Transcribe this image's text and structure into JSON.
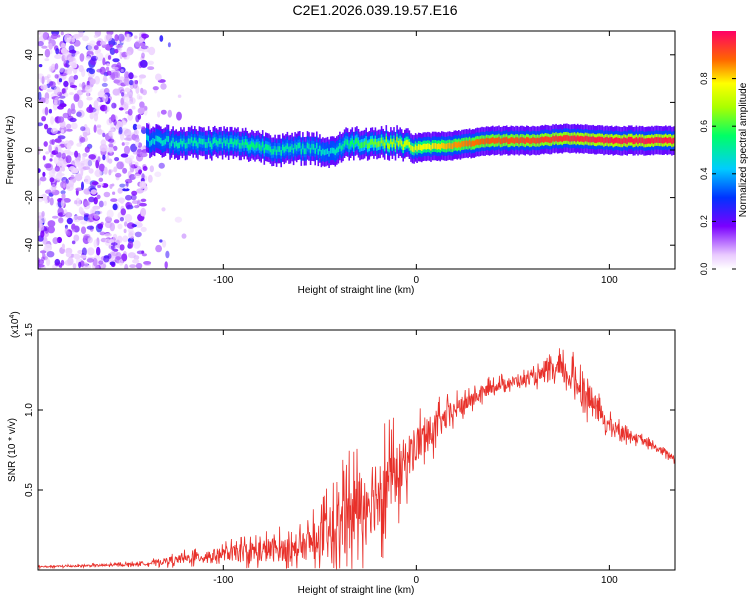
{
  "title": "C2E1.2026.039.19.57.E16",
  "chart_data": [
    {
      "type": "heatmap",
      "name": "spectrogram",
      "xlabel": "Height of straight line (km)",
      "ylabel": "Frequency (Hz)",
      "xlim": [
        -196,
        134
      ],
      "ylim": [
        -50,
        50
      ],
      "xticks": [
        -100,
        0,
        100
      ],
      "xtick_labels": [
        "-100",
        "0",
        "100"
      ],
      "yticks": [
        -40,
        -20,
        0,
        20,
        40
      ],
      "ytick_labels": [
        "-40",
        "-20",
        "0",
        "20",
        "40"
      ],
      "colorbar": {
        "label": "Normalized spectral amplitude",
        "range": [
          0,
          1
        ],
        "ticks": [
          0.0,
          0.2,
          0.4,
          0.6,
          0.8
        ],
        "tick_labels": [
          "0.0",
          "0.2",
          "0.4",
          "0.6",
          "0.8"
        ]
      },
      "noise_region_x": [
        -196,
        -140
      ],
      "ridge": [
        {
          "x": -140,
          "y": 4,
          "a": 0.45
        },
        {
          "x": -120,
          "y": 3,
          "a": 0.5
        },
        {
          "x": -100,
          "y": 3,
          "a": 0.5
        },
        {
          "x": -85,
          "y": 2,
          "a": 0.55
        },
        {
          "x": -70,
          "y": 0,
          "a": 0.5
        },
        {
          "x": -55,
          "y": 1,
          "a": 0.5
        },
        {
          "x": -45,
          "y": -1,
          "a": 0.45
        },
        {
          "x": -35,
          "y": 3,
          "a": 0.55
        },
        {
          "x": -20,
          "y": 3,
          "a": 0.65
        },
        {
          "x": -10,
          "y": 3,
          "a": 0.7
        },
        {
          "x": 0,
          "y": 1,
          "a": 0.75
        },
        {
          "x": 20,
          "y": 2,
          "a": 0.85
        },
        {
          "x": 40,
          "y": 4,
          "a": 0.9
        },
        {
          "x": 60,
          "y": 4,
          "a": 0.92
        },
        {
          "x": 80,
          "y": 5,
          "a": 0.95
        },
        {
          "x": 100,
          "y": 4,
          "a": 0.97
        },
        {
          "x": 134,
          "y": 4,
          "a": 0.97
        }
      ]
    },
    {
      "type": "line",
      "name": "snr",
      "xlabel": "Height of straight line (km)",
      "ylabel": "SNR (10 * v/v)",
      "scale_label": "(x10",
      "scale_exp": "4",
      "xlim": [
        -196,
        134
      ],
      "ylim": [
        0,
        1.5
      ],
      "xticks": [
        -100,
        0,
        100
      ],
      "xtick_labels": [
        "-100",
        "0",
        "100"
      ],
      "yticks": [
        0.5,
        1.0,
        1.5
      ],
      "ytick_labels": [
        "0.5",
        "1.0",
        "1.5"
      ],
      "color": "#e8302a",
      "envelope": [
        {
          "x": -196,
          "base": 0.02,
          "amp": 0.01
        },
        {
          "x": -160,
          "base": 0.03,
          "amp": 0.015
        },
        {
          "x": -140,
          "base": 0.04,
          "amp": 0.02
        },
        {
          "x": -120,
          "base": 0.07,
          "amp": 0.06
        },
        {
          "x": -100,
          "base": 0.1,
          "amp": 0.08
        },
        {
          "x": -80,
          "base": 0.12,
          "amp": 0.15
        },
        {
          "x": -60,
          "base": 0.14,
          "amp": 0.15
        },
        {
          "x": -40,
          "base": 0.25,
          "amp": 0.4
        },
        {
          "x": -30,
          "base": 0.4,
          "amp": 0.45
        },
        {
          "x": -20,
          "base": 0.5,
          "amp": 0.5
        },
        {
          "x": -10,
          "base": 0.6,
          "amp": 0.35
        },
        {
          "x": 0,
          "base": 0.78,
          "amp": 0.25
        },
        {
          "x": 20,
          "base": 1.0,
          "amp": 0.12
        },
        {
          "x": 40,
          "base": 1.15,
          "amp": 0.07
        },
        {
          "x": 60,
          "base": 1.2,
          "amp": 0.07
        },
        {
          "x": 75,
          "base": 1.25,
          "amp": 0.15
        },
        {
          "x": 85,
          "base": 1.15,
          "amp": 0.2
        },
        {
          "x": 100,
          "base": 0.9,
          "amp": 0.1
        },
        {
          "x": 115,
          "base": 0.82,
          "amp": 0.05
        },
        {
          "x": 134,
          "base": 0.7,
          "amp": 0.04
        }
      ]
    }
  ]
}
